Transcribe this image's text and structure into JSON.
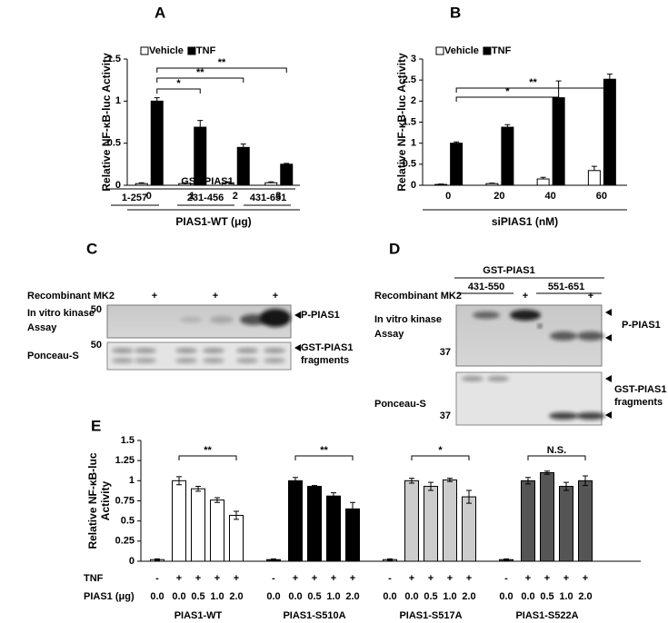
{
  "labels": [
    "A",
    "B",
    "C",
    "D",
    "E"
  ],
  "chart_data": [
    {
      "type": "bar",
      "y_label": "Relative NF-κB-luc Activity",
      "x_label": "PIAS1-WT (μg)",
      "categories": [
        0,
        1,
        2,
        3
      ],
      "series": [
        {
          "name": "Vehicle",
          "color": "#ffffff",
          "values": [
            0.02,
            0.02,
            0.03,
            0.03
          ],
          "errors": [
            0.01,
            0.01,
            0.01,
            0.01
          ]
        },
        {
          "name": "TNF",
          "color": "#000000",
          "values": [
            1.0,
            0.69,
            0.45,
            0.25
          ],
          "errors": [
            0.04,
            0.08,
            0.04,
            0.01
          ]
        }
      ],
      "ylim": [
        0,
        1.5
      ],
      "yticks": [
        0,
        0.5,
        1,
        1.5
      ],
      "significance": [
        "*",
        "**",
        "**"
      ]
    },
    {
      "type": "bar",
      "y_label": "Relative NF-κB-luc Activity",
      "x_label": "siPIAS1 (nM)",
      "categories": [
        0,
        20,
        40,
        60
      ],
      "series": [
        {
          "name": "Vehicle",
          "color": "#ffffff",
          "values": [
            0.02,
            0.04,
            0.15,
            0.35
          ],
          "errors": [
            0.01,
            0.01,
            0.04,
            0.1
          ]
        },
        {
          "name": "TNF",
          "color": "#000000",
          "values": [
            1.0,
            1.38,
            2.08,
            2.52
          ],
          "errors": [
            0.03,
            0.06,
            0.4,
            0.12
          ]
        }
      ],
      "ylim": [
        0,
        3
      ],
      "yticks": [
        0,
        0.5,
        1,
        1.5,
        2,
        2.5,
        3
      ],
      "significance": [
        "*",
        "**"
      ]
    },
    {
      "type": "grouped_bar",
      "y_label": [
        "Relative NF-κB-luc",
        "Activity"
      ],
      "row_labels": [
        "TNF",
        "PIAS1 (μg)"
      ],
      "tnf": [
        "-",
        "+",
        "+",
        "+",
        "+"
      ],
      "dose": [
        "0.0",
        "0.0",
        "0.5",
        "1.0",
        "2.0"
      ],
      "groups": [
        {
          "name": "PIAS1-WT",
          "color": "#ffffff",
          "values": [
            0.02,
            1.0,
            0.9,
            0.76,
            0.57
          ],
          "errors": [
            0.01,
            0.05,
            0.03,
            0.03,
            0.05
          ],
          "significance": "**"
        },
        {
          "name": "PIAS1-S510A",
          "color": "#000000",
          "values": [
            0.02,
            1.0,
            0.93,
            0.81,
            0.65
          ],
          "errors": [
            0.01,
            0.04,
            0.01,
            0.04,
            0.08
          ],
          "significance": "**"
        },
        {
          "name": "PIAS1-S517A",
          "color": "#cccccc",
          "values": [
            0.02,
            1.0,
            0.93,
            1.01,
            0.8
          ],
          "errors": [
            0.01,
            0.03,
            0.05,
            0.02,
            0.08
          ],
          "significance": "*"
        },
        {
          "name": "PIAS1-S522A",
          "color": "#555555",
          "values": [
            0.02,
            1.0,
            1.1,
            0.93,
            1.0
          ],
          "errors": [
            0.01,
            0.04,
            0.02,
            0.05,
            0.06
          ],
          "significance": "N.S."
        }
      ],
      "ylim": [
        0,
        1.5
      ],
      "yticks": [
        0,
        0.25,
        0.5,
        0.75,
        1,
        1.25,
        1.5
      ]
    }
  ],
  "blots": [
    {
      "title": "GST-PIAS1",
      "fragments": [
        "1-257",
        "231-456",
        "431-651"
      ],
      "treatment": "Recombinant MK2",
      "plus": "+",
      "assay": [
        "In vitro kinase",
        "Assay"
      ],
      "stain": "Ponceau-S",
      "markers": [
        50,
        50
      ],
      "kinase_band": "P-PIAS1",
      "stain_band": [
        "GST-PIAS1",
        "fragments"
      ]
    },
    {
      "title": "GST-PIAS1",
      "fragments": [
        "431-550",
        "551-651"
      ],
      "treatment": "Recombinant MK2",
      "plus": "+",
      "assay": [
        "In vitro kinase",
        "Assay"
      ],
      "stain": "Ponceau-S",
      "markers": [
        37,
        37
      ],
      "kinase_band": "P-PIAS1",
      "stain_band": [
        "GST-PIAS1",
        "fragments"
      ]
    }
  ]
}
